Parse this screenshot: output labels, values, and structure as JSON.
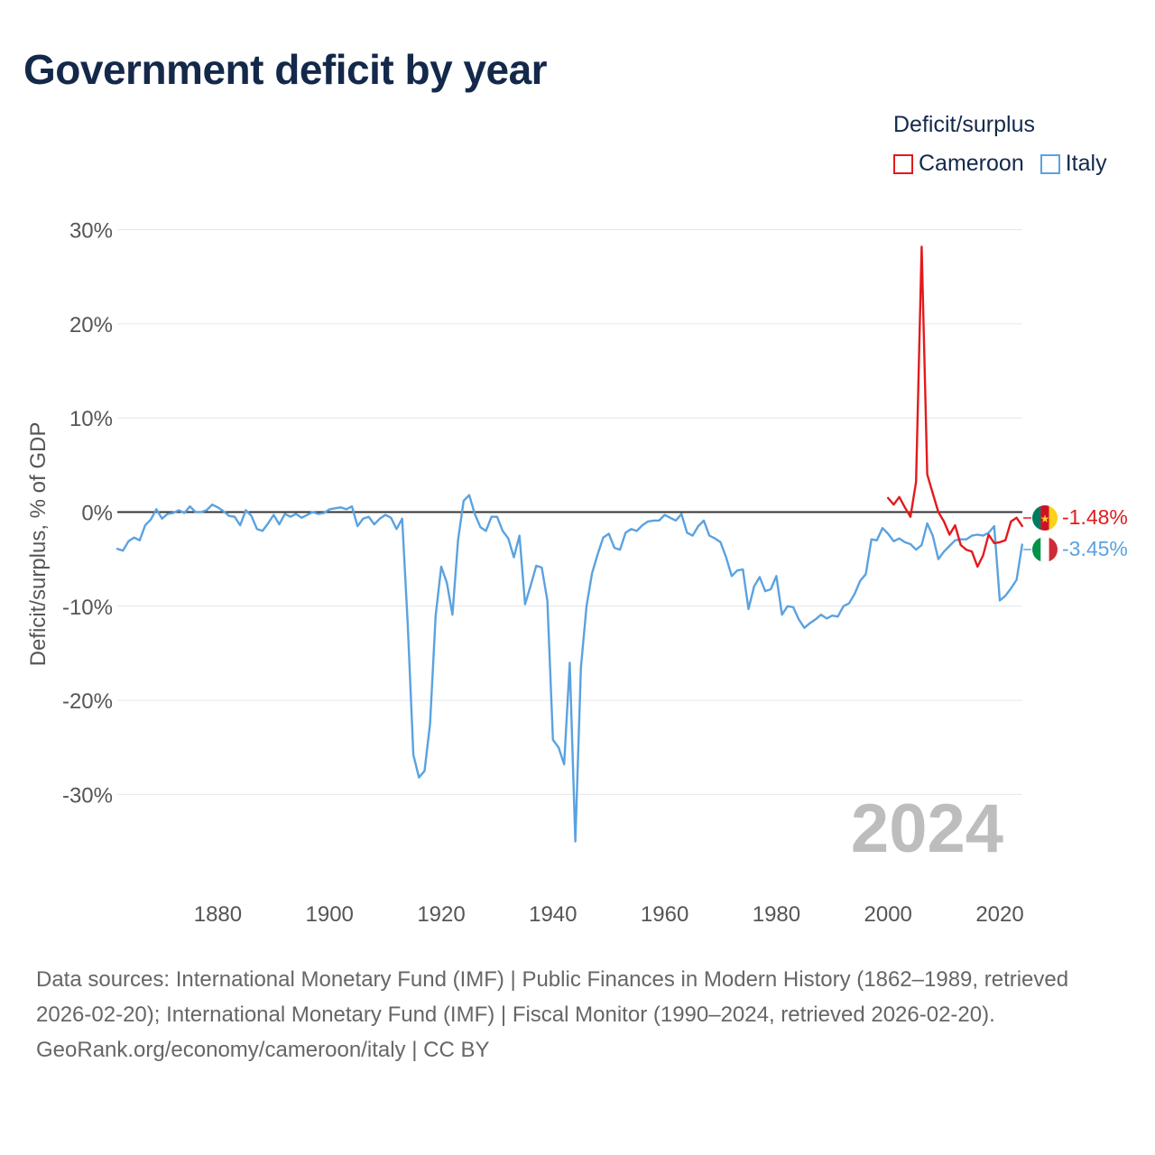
{
  "title": "Government deficit by year",
  "legend": {
    "title": "Deficit/surplus",
    "items": [
      {
        "label": "Cameroon",
        "color": "#e31a1c"
      },
      {
        "label": "Italy",
        "color": "#5aa2e0"
      }
    ]
  },
  "footer": {
    "sources": "Data sources: International Monetary Fund (IMF) | Public Finances in Modern History (1862–1989, retrieved 2026-02-20); International Monetary Fund (IMF) | Fiscal Monitor (1990–2024, retrieved 2026-02-20).",
    "credit": "GeoRank.org/economy/cameroon/italy | CC BY"
  },
  "chart_data": {
    "type": "line",
    "title": "Government deficit by year",
    "xlabel": "",
    "ylabel": "Deficit/surplus, % of GDP",
    "xlim": [
      1862,
      2024
    ],
    "ylim": [
      -40,
      30
    ],
    "x_ticks": [
      1880,
      1900,
      1920,
      1940,
      1960,
      1980,
      2000,
      2020
    ],
    "x_tick_labels": [
      "1880",
      "1900",
      "1920",
      "1940",
      "1960",
      "1980",
      "2000",
      "2020"
    ],
    "y_ticks": [
      30,
      20,
      10,
      0,
      -10,
      -20,
      -30
    ],
    "y_tick_labels": [
      "30%",
      "20%",
      "10%",
      "0%",
      "-10%",
      "-20%",
      "-30%"
    ],
    "year_watermark": "2024",
    "grid": true,
    "legend_position": "top-right",
    "series": [
      {
        "name": "Cameroon",
        "color": "#e31a1c",
        "end_label": "-1.48%",
        "x": [
          2000,
          2001,
          2002,
          2003,
          2004,
          2005,
          2006,
          2007,
          2008,
          2009,
          2010,
          2011,
          2012,
          2013,
          2014,
          2015,
          2016,
          2017,
          2018,
          2019,
          2020,
          2021,
          2022,
          2023,
          2024
        ],
        "y": [
          1.5,
          0.8,
          1.6,
          0.5,
          -0.5,
          3.2,
          28.2,
          4.0,
          2.0,
          0.0,
          -1.0,
          -2.4,
          -1.4,
          -3.5,
          -4.0,
          -4.2,
          -5.8,
          -4.6,
          -2.4,
          -3.3,
          -3.2,
          -3.0,
          -1.0,
          -0.6,
          -1.48
        ]
      },
      {
        "name": "Italy",
        "color": "#5aa2e0",
        "end_label": "-3.45%",
        "x": [
          1862,
          1863,
          1864,
          1865,
          1866,
          1867,
          1868,
          1869,
          1870,
          1871,
          1872,
          1873,
          1874,
          1875,
          1876,
          1877,
          1878,
          1879,
          1880,
          1881,
          1882,
          1883,
          1884,
          1885,
          1886,
          1887,
          1888,
          1889,
          1890,
          1891,
          1892,
          1893,
          1894,
          1895,
          1896,
          1897,
          1898,
          1899,
          1900,
          1901,
          1902,
          1903,
          1904,
          1905,
          1906,
          1907,
          1908,
          1909,
          1910,
          1911,
          1912,
          1913,
          1914,
          1915,
          1916,
          1917,
          1918,
          1919,
          1920,
          1921,
          1922,
          1923,
          1924,
          1925,
          1926,
          1927,
          1928,
          1929,
          1930,
          1931,
          1932,
          1933,
          1934,
          1935,
          1936,
          1937,
          1938,
          1939,
          1940,
          1941,
          1942,
          1943,
          1944,
          1945,
          1946,
          1947,
          1948,
          1949,
          1950,
          1951,
          1952,
          1953,
          1954,
          1955,
          1956,
          1957,
          1958,
          1959,
          1960,
          1961,
          1962,
          1963,
          1964,
          1965,
          1966,
          1967,
          1968,
          1969,
          1970,
          1971,
          1972,
          1973,
          1974,
          1975,
          1976,
          1977,
          1978,
          1979,
          1980,
          1981,
          1982,
          1983,
          1984,
          1985,
          1986,
          1987,
          1988,
          1989,
          1990,
          1991,
          1992,
          1993,
          1994,
          1995,
          1996,
          1997,
          1998,
          1999,
          2000,
          2001,
          2002,
          2003,
          2004,
          2005,
          2006,
          2007,
          2008,
          2009,
          2010,
          2011,
          2012,
          2013,
          2014,
          2015,
          2016,
          2017,
          2018,
          2019,
          2020,
          2021,
          2022,
          2023,
          2024
        ],
        "y": [
          -3.9,
          -4.1,
          -3.1,
          -2.7,
          -3.0,
          -1.4,
          -0.8,
          0.3,
          -0.7,
          -0.2,
          -0.1,
          0.2,
          -0.1,
          0.6,
          0.0,
          0.0,
          0.2,
          0.8,
          0.5,
          0.1,
          -0.4,
          -0.5,
          -1.4,
          0.2,
          -0.4,
          -1.8,
          -2.0,
          -1.2,
          -0.3,
          -1.3,
          -0.2,
          -0.5,
          -0.2,
          -0.6,
          -0.3,
          0.0,
          -0.2,
          -0.1,
          0.3,
          0.4,
          0.5,
          0.3,
          0.6,
          -1.5,
          -0.7,
          -0.5,
          -1.3,
          -0.7,
          -0.3,
          -0.6,
          -1.8,
          -0.7,
          -12.0,
          -25.8,
          -28.2,
          -27.5,
          -22.5,
          -11.0,
          -5.8,
          -7.5,
          -10.9,
          -3.0,
          1.2,
          1.8,
          -0.2,
          -1.6,
          -2.0,
          -0.5,
          -0.5,
          -2.0,
          -2.8,
          -4.8,
          -2.5,
          -9.8,
          -7.8,
          -5.7,
          -5.9,
          -9.4,
          -24.2,
          -25.0,
          -26.8,
          -16.0,
          -35.0,
          -16.5,
          -10.0,
          -6.5,
          -4.5,
          -2.7,
          -2.3,
          -3.8,
          -4.0,
          -2.2,
          -1.8,
          -2.0,
          -1.4,
          -1.0,
          -0.9,
          -0.9,
          -0.3,
          -0.6,
          -0.9,
          -0.2,
          -2.2,
          -2.5,
          -1.5,
          -0.9,
          -2.5,
          -2.8,
          -3.2,
          -4.8,
          -6.8,
          -6.2,
          -6.1,
          -10.3,
          -7.9,
          -6.9,
          -8.4,
          -8.2,
          -6.8,
          -10.9,
          -10.0,
          -10.1,
          -11.4,
          -12.3,
          -11.8,
          -11.4,
          -10.9,
          -11.3,
          -11.0,
          -11.1,
          -10.0,
          -9.7,
          -8.7,
          -7.3,
          -6.6,
          -2.9,
          -3.0,
          -1.7,
          -2.3,
          -3.1,
          -2.8,
          -3.2,
          -3.4,
          -4.0,
          -3.5,
          -1.2,
          -2.5,
          -5.0,
          -4.2,
          -3.6,
          -3.0,
          -2.9,
          -2.9,
          -2.5,
          -2.4,
          -2.5,
          -2.2,
          -1.5,
          -9.4,
          -8.9,
          -8.1,
          -7.2,
          -3.45
        ]
      }
    ]
  }
}
